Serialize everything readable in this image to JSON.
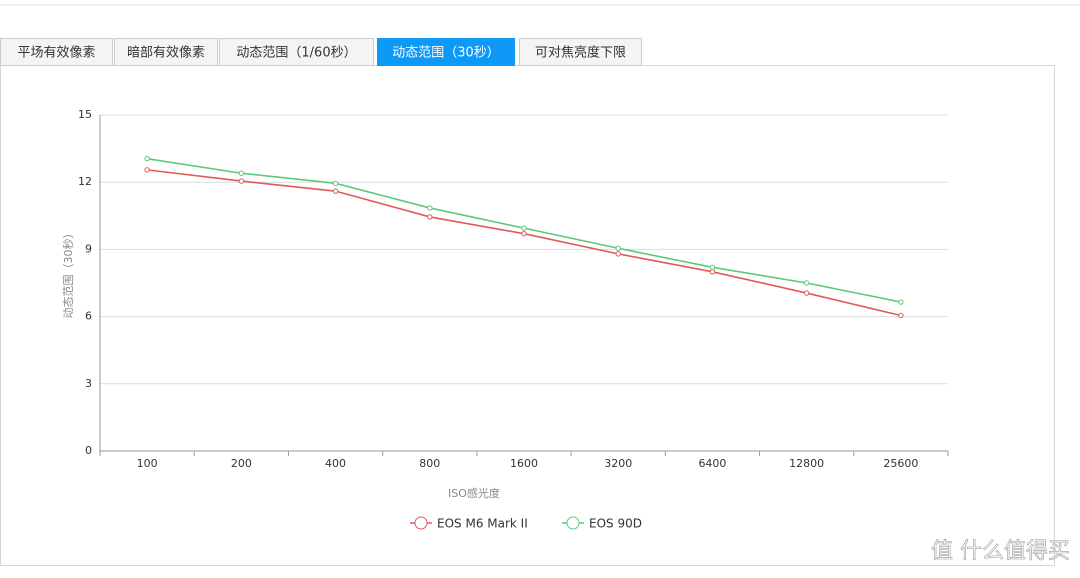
{
  "tabs": [
    "平场有效像素",
    "暗部有效像素",
    "动态范围（1/60秒）",
    "动态范围（30秒）",
    "可对焦亮度下限"
  ],
  "active_tab": 3,
  "watermark": "值 什么值得买",
  "chart_data": {
    "type": "line",
    "y_label": "动态范围（30秒）",
    "x_label": "ISO感光度",
    "categories": [
      "100",
      "200",
      "400",
      "800",
      "1600",
      "3200",
      "6400",
      "12800",
      "25600"
    ],
    "series": [
      {
        "name": "EOS M6 Mark II",
        "color": "#e05a5a",
        "values": [
          12.55,
          12.05,
          11.6,
          10.45,
          9.7,
          8.8,
          8.0,
          7.05,
          6.05
        ]
      },
      {
        "name": "EOS 90D",
        "color": "#5cc97a",
        "values": [
          13.05,
          12.4,
          11.95,
          10.85,
          9.95,
          9.05,
          8.2,
          7.5,
          6.65
        ]
      }
    ],
    "ylim": [
      0,
      15
    ],
    "yticks": [
      0,
      3,
      6,
      9,
      12,
      15
    ],
    "grid": true
  }
}
